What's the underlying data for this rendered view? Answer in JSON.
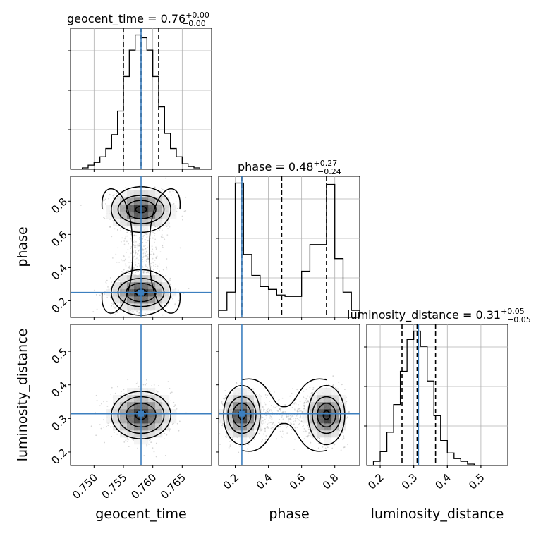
{
  "chart_data": [
    {
      "type": "histogram",
      "panel": "1d-geocent_time",
      "title": "geocent_time = 0.76",
      "title_sup": "+0.00",
      "title_sub": "−0.00",
      "xlabel": "geocent_time",
      "xlim": [
        0.746,
        0.77
      ],
      "xticks": [
        "0.750",
        "0.755",
        "0.760",
        "0.765"
      ],
      "bin_edges": [
        0.748,
        0.749,
        0.75,
        0.751,
        0.752,
        0.753,
        0.754,
        0.755,
        0.756,
        0.757,
        0.758,
        0.759,
        0.76,
        0.761,
        0.762,
        0.763,
        0.764,
        0.765,
        0.766,
        0.767,
        0.768
      ],
      "counts": [
        1,
        3,
        5,
        9,
        15,
        25,
        42,
        67,
        86,
        97,
        95,
        86,
        67,
        45,
        26,
        15,
        9,
        4,
        2,
        1
      ],
      "injection": 0.758,
      "quantiles": [
        0.755,
        0.758,
        0.761
      ],
      "grid": true
    },
    {
      "type": "histogram",
      "panel": "1d-phase",
      "title": "phase = 0.48",
      "title_sup": "+0.27",
      "title_sub": "−0.24",
      "xlabel": "phase",
      "xlim": [
        0.1,
        0.95
      ],
      "xticks": [
        "0.2",
        "0.4",
        "0.6",
        "0.8"
      ],
      "bin_edges": [
        0.1,
        0.15,
        0.2,
        0.25,
        0.3,
        0.35,
        0.4,
        0.45,
        0.5,
        0.55,
        0.6,
        0.65,
        0.7,
        0.75,
        0.8,
        0.85,
        0.9,
        0.95
      ],
      "counts": [
        5,
        18,
        96,
        45,
        30,
        22,
        20,
        16,
        15,
        15,
        33,
        52,
        52,
        95,
        42,
        18,
        5
      ],
      "injection": 0.24,
      "quantiles": [
        0.24,
        0.48,
        0.75
      ],
      "grid": true
    },
    {
      "type": "histogram",
      "panel": "1d-luminosity_distance",
      "title": "luminosity_distance = 0.31",
      "title_sup": "+0.05",
      "title_sub": "−0.05",
      "xlabel": "luminosity_distance",
      "xlim": [
        0.16,
        0.58
      ],
      "xticks": [
        "0.2",
        "0.3",
        "0.4",
        "0.5"
      ],
      "bin_edges": [
        0.18,
        0.2,
        0.22,
        0.24,
        0.26,
        0.28,
        0.3,
        0.32,
        0.34,
        0.36,
        0.38,
        0.4,
        0.42,
        0.44,
        0.46,
        0.48
      ],
      "counts": [
        3,
        10,
        24,
        44,
        68,
        91,
        97,
        86,
        61,
        36,
        18,
        9,
        5,
        3,
        1
      ],
      "injection": 0.314,
      "quantiles": [
        0.265,
        0.31,
        0.365
      ],
      "grid": true
    },
    {
      "type": "2d-density-contour",
      "panel": "2d-geocent_time-phase",
      "xlabel": "geocent_time",
      "ylabel": "phase",
      "xlim": [
        0.746,
        0.77
      ],
      "ylim": [
        0.1,
        0.95
      ],
      "yticks": [
        "0.2",
        "0.4",
        "0.6",
        "0.8"
      ],
      "modes": [
        {
          "x": 0.758,
          "y": 0.75,
          "sx": 0.0023,
          "sy": 0.05
        },
        {
          "x": 0.758,
          "y": 0.25,
          "sx": 0.0023,
          "sy": 0.05
        }
      ],
      "injection": {
        "x": 0.758,
        "y": 0.25
      }
    },
    {
      "type": "2d-density-contour",
      "panel": "2d-geocent_time-luminosity_distance",
      "xlabel": "geocent_time",
      "ylabel": "luminosity_distance",
      "xlim": [
        0.746,
        0.77
      ],
      "ylim": [
        0.16,
        0.58
      ],
      "yticks": [
        "0.2",
        "0.3",
        "0.4",
        "0.5"
      ],
      "modes": [
        {
          "x": 0.758,
          "y": 0.31,
          "sx": 0.0023,
          "sy": 0.032
        }
      ],
      "injection": {
        "x": 0.758,
        "y": 0.314
      }
    },
    {
      "type": "2d-density-contour",
      "panel": "2d-phase-luminosity_distance",
      "xlabel": "phase",
      "ylabel": "luminosity_distance",
      "xlim": [
        0.1,
        0.95
      ],
      "ylim": [
        0.16,
        0.58
      ],
      "modes": [
        {
          "x": 0.24,
          "y": 0.31,
          "sx": 0.05,
          "sy": 0.032
        },
        {
          "x": 0.75,
          "y": 0.31,
          "sx": 0.05,
          "sy": 0.032
        }
      ],
      "injection": {
        "x": 0.24,
        "y": 0.314
      }
    }
  ],
  "colors": {
    "injection": "#3c7fbf",
    "line": "#000000",
    "grid": "#b0b0b0",
    "density_dark": "#111111",
    "scatter": "#888888"
  }
}
